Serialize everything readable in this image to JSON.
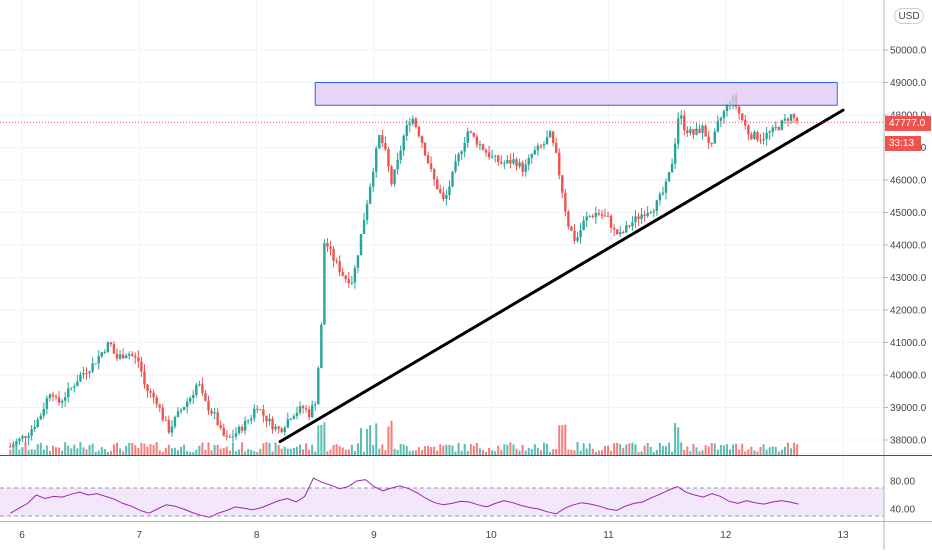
{
  "currency_badge": "USD",
  "last_price_label": "47777.0",
  "countdown_label": "33:13",
  "colors": {
    "up": "#26a69a",
    "down": "#ef5350",
    "trendline": "#000000",
    "zone_fill": "#e1c8f0",
    "zone_border": "#2962ff",
    "rsi_line": "#9c27b0",
    "rsi_band": "#f3e8fb",
    "price_line": "#ef5350"
  },
  "chart_data": [
    {
      "type": "candlestick",
      "title": "",
      "x_ticks": [
        "6",
        "7",
        "8",
        "9",
        "10",
        "11",
        "12",
        "13"
      ],
      "y_ticks": [
        "38000.0",
        "39000.0",
        "40000.0",
        "41000.0",
        "42000.0",
        "43000.0",
        "44000.0",
        "45000.0",
        "46000.0",
        "47000.0",
        "48000.0",
        "49000.0",
        "50000.0"
      ],
      "ylim": [
        37600,
        51100
      ],
      "last_price": 47777.0,
      "series": [
        {
          "kind": "ohlc_close_path",
          "points": [
            [
              5.9,
              37800
            ],
            [
              6.05,
              38200
            ],
            [
              6.15,
              38700
            ],
            [
              6.25,
              39600
            ],
            [
              6.3,
              39100
            ],
            [
              6.4,
              39500
            ],
            [
              6.5,
              40000
            ],
            [
              6.6,
              40300
            ],
            [
              6.7,
              40800
            ],
            [
              6.75,
              41000
            ],
            [
              6.8,
              40500
            ],
            [
              6.9,
              40700
            ],
            [
              7.0,
              40400
            ],
            [
              7.05,
              39600
            ],
            [
              7.15,
              39200
            ],
            [
              7.2,
              38700
            ],
            [
              7.25,
              38300
            ],
            [
              7.35,
              38900
            ],
            [
              7.45,
              39400
            ],
            [
              7.5,
              39800
            ],
            [
              7.55,
              39200
            ],
            [
              7.65,
              38700
            ],
            [
              7.7,
              38200
            ],
            [
              7.75,
              38000
            ],
            [
              7.85,
              38300
            ],
            [
              7.95,
              38700
            ],
            [
              8.0,
              39100
            ],
            [
              8.05,
              38800
            ],
            [
              8.15,
              38400
            ],
            [
              8.2,
              38300
            ],
            [
              8.3,
              38800
            ],
            [
              8.4,
              39000
            ],
            [
              8.45,
              38800
            ],
            [
              8.5,
              39200
            ],
            [
              8.55,
              41200
            ],
            [
              8.57,
              44100
            ],
            [
              8.6,
              44000
            ],
            [
              8.65,
              43600
            ],
            [
              8.75,
              43000
            ],
            [
              8.82,
              42900
            ],
            [
              8.9,
              44500
            ],
            [
              9.0,
              46500
            ],
            [
              9.05,
              47400
            ],
            [
              9.1,
              46800
            ],
            [
              9.15,
              45900
            ],
            [
              9.2,
              46500
            ],
            [
              9.25,
              47300
            ],
            [
              9.32,
              48000
            ],
            [
              9.4,
              47300
            ],
            [
              9.5,
              46100
            ],
            [
              9.6,
              45300
            ],
            [
              9.7,
              46500
            ],
            [
              9.8,
              47500
            ],
            [
              9.9,
              47100
            ],
            [
              10.0,
              46700
            ],
            [
              10.1,
              46500
            ],
            [
              10.2,
              46600
            ],
            [
              10.28,
              46300
            ],
            [
              10.35,
              46800
            ],
            [
              10.45,
              47100
            ],
            [
              10.5,
              47400
            ],
            [
              10.55,
              46800
            ],
            [
              10.6,
              45800
            ],
            [
              10.65,
              44700
            ],
            [
              10.72,
              44100
            ],
            [
              10.8,
              44800
            ],
            [
              10.9,
              45000
            ],
            [
              11.0,
              44800
            ],
            [
              11.05,
              44400
            ],
            [
              11.1,
              44300
            ],
            [
              11.2,
              44700
            ],
            [
              11.3,
              45000
            ],
            [
              11.4,
              45200
            ],
            [
              11.48,
              45700
            ],
            [
              11.52,
              46200
            ],
            [
              11.55,
              46700
            ],
            [
              11.6,
              48100
            ],
            [
              11.65,
              47600
            ],
            [
              11.72,
              47400
            ],
            [
              11.8,
              47600
            ],
            [
              11.88,
              47000
            ],
            [
              11.93,
              47700
            ],
            [
              12.0,
              48200
            ],
            [
              12.05,
              48600
            ],
            [
              12.12,
              48000
            ],
            [
              12.2,
              47400
            ],
            [
              12.3,
              47300
            ],
            [
              12.4,
              47500
            ],
            [
              12.5,
              47800
            ],
            [
              12.55,
              48000
            ],
            [
              12.62,
              47777
            ]
          ]
        },
        {
          "kind": "resistance_zone",
          "x": [
            8.5,
            12.95
          ],
          "y": [
            48300,
            49000
          ]
        },
        {
          "kind": "trendline",
          "from": [
            8.2,
            37950
          ],
          "to": [
            13.0,
            48150
          ]
        }
      ]
    },
    {
      "type": "line",
      "title": "",
      "y_ticks": [
        "40.00",
        "80.00"
      ],
      "band": [
        30,
        70
      ],
      "series": [
        {
          "kind": "rsi",
          "values": [
            34,
            41,
            48,
            60,
            55,
            58,
            57,
            61,
            64,
            60,
            62,
            58,
            54,
            48,
            44,
            38,
            34,
            40,
            46,
            44,
            40,
            35,
            31,
            28,
            34,
            38,
            43,
            41,
            39,
            42,
            47,
            52,
            55,
            50,
            58,
            84,
            78,
            74,
            69,
            72,
            80,
            82,
            72,
            66,
            70,
            73,
            69,
            63,
            55,
            49,
            46,
            48,
            51,
            50,
            46,
            43,
            48,
            52,
            49,
            45,
            42,
            40,
            36,
            33,
            41,
            46,
            49,
            47,
            44,
            40,
            38,
            44,
            48,
            50,
            56,
            61,
            67,
            72,
            64,
            60,
            57,
            62,
            58,
            51,
            48,
            52,
            49,
            47,
            50,
            52,
            50,
            47
          ]
        }
      ]
    }
  ]
}
